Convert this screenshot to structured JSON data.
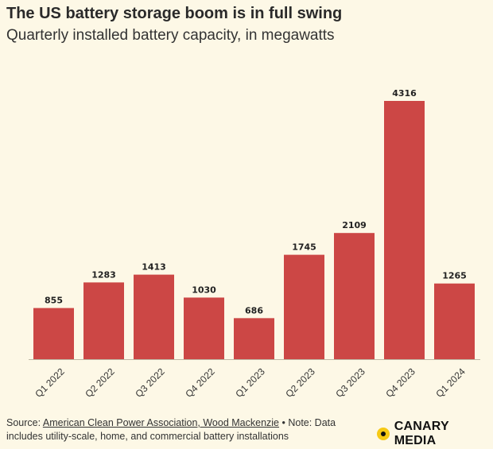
{
  "chart_data": {
    "type": "bar",
    "title": "The US battery storage boom is in full swing",
    "subtitle": "Quarterly installed battery capacity, in megawatts",
    "categories": [
      "Q1 2022",
      "Q2 2022",
      "Q3 2022",
      "Q4 2022",
      "Q1 2023",
      "Q2 2023",
      "Q3 2023",
      "Q4 2023",
      "Q1 2024"
    ],
    "values": [
      855,
      1283,
      1413,
      1030,
      686,
      1745,
      2109,
      4316,
      1265
    ],
    "ylim": [
      0,
      4316
    ],
    "grid": false,
    "bar_color": "#cc4745"
  },
  "footer": {
    "source_prefix": "Source: ",
    "source_link": "American Clean Power Association, Wood Mackenzie",
    "note": " • Note: Data includes utility-scale, home, and commercial battery installations"
  },
  "brand": {
    "name": "CANARY MEDIA",
    "logo_icon": "canary-dot-icon"
  }
}
